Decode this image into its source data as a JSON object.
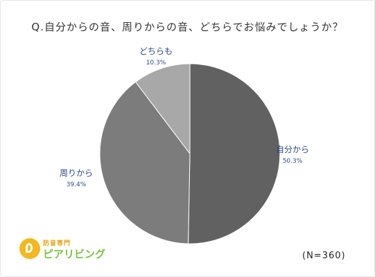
{
  "title": "Q.自分からの音、周りからの音、どちらでお悩みでしょうか？",
  "sample_size": "(N=360)",
  "logo": {
    "small_text": "防音専門",
    "main_text": "ピアリビング"
  },
  "chart_data": {
    "type": "pie",
    "title": "Q.自分からの音、周りからの音、どちらでお悩みでしょうか？",
    "slices": [
      {
        "label": "自分から",
        "value": 50.3,
        "percent_label": "50.3%",
        "color": "#616161"
      },
      {
        "label": "周りから",
        "value": 39.4,
        "percent_label": "39.4%",
        "color": "#7c7c7c"
      },
      {
        "label": "どちらも",
        "value": 10.3,
        "percent_label": "10.3%",
        "color": "#a8a8a8"
      }
    ],
    "start_angle_deg": 0,
    "direction": "clockwise",
    "label_color": "#2b4a8a"
  }
}
